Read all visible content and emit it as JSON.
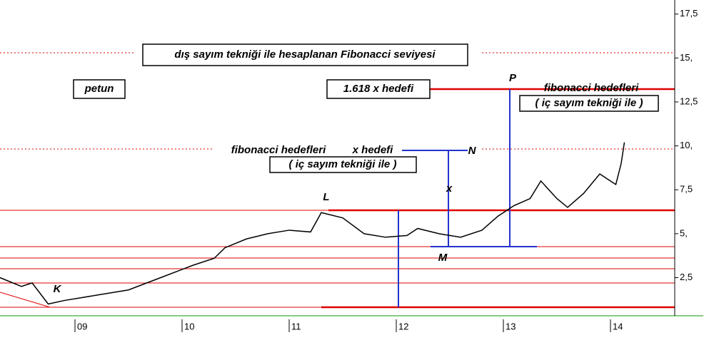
{
  "chart_data": {
    "type": "line",
    "annotations": [
      "dış sayım tekniği ile hesaplanan Fibonacci seviyesi",
      "petun",
      "1.618 x hedefi",
      "P",
      "fibonacci hedefleri",
      "( iç sayım tekniği ile )",
      "fibonacci hedefleri",
      "x hedefi",
      "N",
      "( iç sayım tekniği ile )",
      "x",
      "L",
      "M",
      "K"
    ],
    "series": [
      {
        "color": "#000000",
        "x": [
          2008.3,
          2008.5,
          2008.6,
          2008.75,
          2008.9,
          2009.2,
          2009.5,
          2009.8,
          2010.1,
          2010.3,
          2010.4,
          2010.6,
          2010.8,
          2011.0,
          2011.2,
          2011.3,
          2011.5,
          2011.7,
          2011.9,
          2012.1,
          2012.2,
          2012.4,
          2012.6,
          2012.8,
          2012.95,
          2013.1,
          2013.25,
          2013.35,
          2013.5,
          2013.6,
          2013.75,
          2013.9,
          2014.05,
          2014.1,
          2014.13
        ],
        "values": [
          2.5,
          2.0,
          2.2,
          1.0,
          1.2,
          1.5,
          1.8,
          2.5,
          3.2,
          3.6,
          4.2,
          4.7,
          5.0,
          5.2,
          5.1,
          6.2,
          5.9,
          5.0,
          4.8,
          4.9,
          5.3,
          5.0,
          4.8,
          5.2,
          6.0,
          6.6,
          7.0,
          8.0,
          7.0,
          6.5,
          7.3,
          8.4,
          7.8,
          9.0,
          10.2
        ]
      }
    ],
    "xlim": [
      2008.3,
      2014.6
    ],
    "xticks": [
      {
        "value": 2009,
        "label": "09"
      },
      {
        "value": 2010,
        "label": "10"
      },
      {
        "value": 2011,
        "label": "11"
      },
      {
        "value": 2012,
        "label": "12"
      },
      {
        "value": 2013,
        "label": "13"
      },
      {
        "value": 2014,
        "label": "14"
      }
    ],
    "ylim": [
      0.33,
      18.3
    ],
    "yticks": [
      {
        "value": 2.5,
        "label": "2,5"
      },
      {
        "value": 5,
        "label": "5,"
      },
      {
        "value": 7.5,
        "label": "7,5"
      },
      {
        "value": 10,
        "label": "10,"
      },
      {
        "value": 12.5,
        "label": "12,5"
      },
      {
        "value": 15,
        "label": "15,"
      },
      {
        "value": 17.5,
        "label": "17,5"
      }
    ]
  }
}
